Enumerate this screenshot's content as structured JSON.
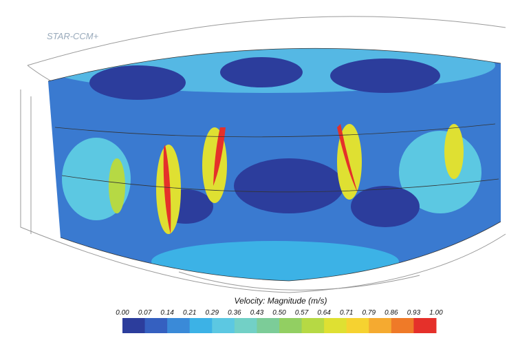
{
  "logo": "STAR-CCM+",
  "legend": {
    "title": "Velocity: Magnitude (m/s)",
    "ticks": [
      "0.00",
      "0.07",
      "0.14",
      "0.21",
      "0.29",
      "0.36",
      "0.43",
      "0.50",
      "0.57",
      "0.64",
      "0.71",
      "0.79",
      "0.86",
      "0.93",
      "1.00"
    ],
    "colors": [
      "#2c3d9c",
      "#3560c0",
      "#3a8ad8",
      "#3cb2e6",
      "#5cc8e2",
      "#72d0c6",
      "#7ccc98",
      "#92cf62",
      "#b6d944",
      "#dfe032",
      "#f6d230",
      "#f5aa30",
      "#ef7a28",
      "#e5302a"
    ]
  }
}
